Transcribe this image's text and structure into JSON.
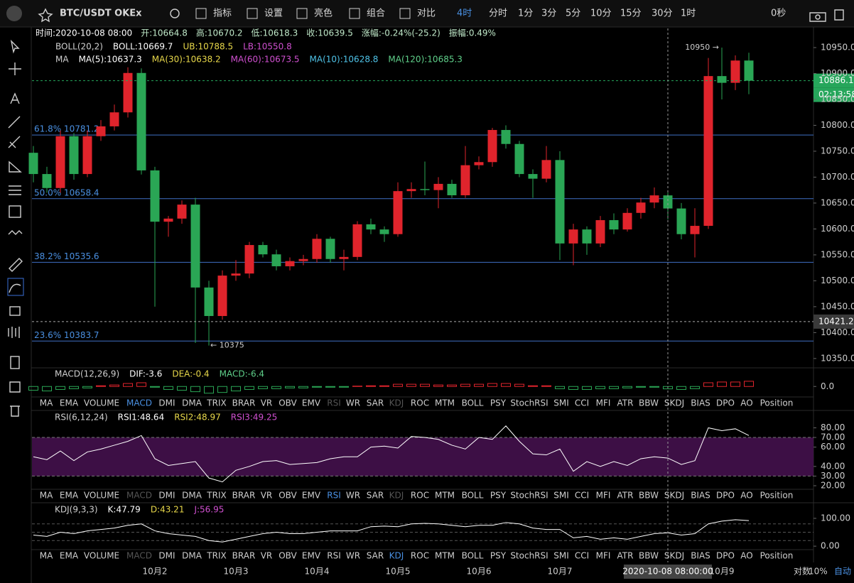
{
  "toolbar": {
    "symbol": "BTC/USDT OKEx",
    "buttons": [
      "指标",
      "设置",
      "亮色",
      "组合",
      "对比"
    ],
    "intervals": [
      "4时",
      "分时",
      "1分",
      "3分",
      "5分",
      "10分",
      "15分",
      "30分",
      "1时"
    ],
    "countdown": "0秒"
  },
  "info": [
    "时间:2020-10-08 08:00",
    "开:10664.8",
    "高:10670.2",
    "低:10618.3",
    "收:10639.5",
    "涨幅:-0.24%(-25.2)",
    "振幅:0.49%"
  ],
  "legends": {
    "boll": [
      {
        "text": "BOLL(20,2)",
        "color": "#cfcfcf"
      },
      {
        "text": "BOLL:10669.7",
        "color": "#ffffff"
      },
      {
        "text": "UB:10788.5",
        "color": "#e8d84a"
      },
      {
        "text": "LB:10550.8",
        "color": "#d050d0"
      }
    ],
    "ma": [
      {
        "text": "MA",
        "color": "#cfcfcf"
      },
      {
        "text": "MA(5):10637.3",
        "color": "#ffffff"
      },
      {
        "text": "MA(30):10638.2",
        "color": "#e8d84a"
      },
      {
        "text": "MA(60):10673.5",
        "color": "#d050d0"
      },
      {
        "text": "MA(10):10628.8",
        "color": "#4fc3e8"
      },
      {
        "text": "MA(120):10685.3",
        "color": "#5fd08a"
      }
    ]
  },
  "chart_data": [
    {
      "type": "candlestick",
      "categories": [
        null,
        null,
        null,
        null,
        null,
        null,
        null,
        null,
        null,
        "10月2",
        null,
        null,
        null,
        null,
        null,
        "10月3",
        null,
        null,
        null,
        null,
        null,
        "10月4",
        null,
        null,
        null,
        null,
        null,
        "10月5",
        null,
        null,
        null,
        null,
        null,
        "10月6",
        null,
        null,
        null,
        null,
        null,
        "10月7",
        null,
        null,
        null,
        null,
        null,
        null,
        null,
        null,
        null,
        null,
        null,
        "10月9",
        null,
        null
      ],
      "open": [
        10747,
        10706,
        10679,
        10779,
        10706,
        10779,
        10798,
        10825,
        10901,
        10713,
        10614,
        10620,
        10647,
        10487,
        10432,
        10510,
        10514,
        10569,
        10551,
        10528,
        10538,
        10542,
        10581,
        10542,
        10546,
        10609,
        10599,
        10590,
        10673,
        10677,
        10675,
        10687,
        10665,
        10723,
        10729,
        10791,
        10764,
        10706,
        10697,
        10733,
        10572,
        10599,
        10572,
        10617,
        10599,
        10631,
        10651,
        10664.8,
        10639.5,
        10590,
        10606,
        10895,
        10882,
        10925
      ],
      "high": [
        10760,
        10720,
        10790,
        10785,
        10790,
        10810,
        10840,
        10912,
        10910,
        10720,
        10625,
        10655,
        10660,
        10500,
        10520,
        10540,
        10575,
        10575,
        10560,
        10545,
        10550,
        10590,
        10585,
        10560,
        10615,
        10620,
        10605,
        10690,
        10690,
        10730,
        10700,
        10695,
        10760,
        10740,
        10795,
        10800,
        10770,
        10715,
        10760,
        10750,
        10610,
        10605,
        10625,
        10630,
        10640,
        10660,
        10680,
        10670.2,
        10650,
        10640,
        10930,
        10950,
        10935,
        10940
      ],
      "low": [
        10690,
        10670,
        10670,
        10695,
        10700,
        10770,
        10790,
        10815,
        10705,
        10450,
        10585,
        10610,
        10380,
        10375,
        10425,
        10500,
        10505,
        10545,
        10520,
        10520,
        10530,
        10535,
        10535,
        10520,
        10540,
        10590,
        10575,
        10585,
        10660,
        10665,
        10640,
        10660,
        10660,
        10715,
        10720,
        10755,
        10700,
        10660,
        10690,
        10540,
        10530,
        10550,
        10565,
        10590,
        10595,
        10620,
        10640,
        10618.3,
        10580,
        10545,
        10600,
        10850,
        10868,
        10860
      ],
      "close": [
        10706,
        10679,
        10779,
        10706,
        10779,
        10798,
        10825,
        10901,
        10713,
        10614,
        10620,
        10647,
        10487,
        10432,
        10510,
        10514,
        10569,
        10551,
        10528,
        10538,
        10542,
        10581,
        10542,
        10546,
        10609,
        10599,
        10590,
        10673,
        10677,
        10675,
        10687,
        10665,
        10723,
        10729,
        10791,
        10764,
        10706,
        10697,
        10733,
        10572,
        10599,
        10572,
        10617,
        10599,
        10631,
        10651,
        10664.8,
        10639.5,
        10590,
        10606,
        10895,
        10882,
        10925,
        10886.1
      ],
      "up_color": "#e0242c",
      "down_color": "#2aa655",
      "ylim": [
        10332,
        10987
      ],
      "yticks": [
        {
          "value": 10350,
          "label": "10350.0"
        },
        {
          "value": 10400,
          "label": "10400.0"
        },
        {
          "value": 10450,
          "label": "10450.0"
        },
        {
          "value": 10500,
          "label": "10500.0"
        },
        {
          "value": 10550,
          "label": "10550.0"
        },
        {
          "value": 10600,
          "label": "10600.0"
        },
        {
          "value": 10650,
          "label": "10650.0"
        },
        {
          "value": 10700,
          "label": "10700.0"
        },
        {
          "value": 10750,
          "label": "10750.0"
        },
        {
          "value": 10800,
          "label": "10800.0"
        },
        {
          "value": 10850,
          "label": "10850.0"
        },
        {
          "value": 10900,
          "label": "10900.0"
        },
        {
          "value": 10950,
          "label": "10950.0"
        }
      ],
      "fib_levels": [
        {
          "value": 10781.2,
          "label": "61.8% 10781.2"
        },
        {
          "value": 10658.4,
          "label": "50.0% 10658.4"
        },
        {
          "value": 10535.6,
          "label": "38.2% 10535.6"
        },
        {
          "value": 10383.7,
          "label": "23.6% 10383.7"
        }
      ],
      "price_tags": [
        {
          "value": 10886.1,
          "label": "10886.1",
          "color": "#26a65b"
        },
        {
          "value": 10421.2,
          "label": "10421.2",
          "color": "#3a3a3a"
        }
      ],
      "bar_countdown": "02:13:58",
      "annotations": [
        "10950 →",
        "← 10375"
      ]
    },
    {
      "type": "bar",
      "legend": [
        {
          "text": "MACD(12,26,9)",
          "color": "#cfcfcf"
        },
        {
          "text": "DIF:-3.6",
          "color": "#ffffff"
        },
        {
          "text": "DEA:-0.4",
          "color": "#e8d84a"
        },
        {
          "text": "MACD:-6.4",
          "color": "#5fd08a"
        }
      ],
      "values": [
        -10,
        -12,
        -8,
        -6,
        -4,
        2,
        4,
        8,
        10,
        -2,
        -8,
        -10,
        -14,
        -18,
        -16,
        -12,
        -8,
        -6,
        -6,
        -4,
        -4,
        -2,
        -2,
        -2,
        1,
        2,
        2,
        6,
        6,
        6,
        4,
        4,
        6,
        6,
        8,
        8,
        6,
        2,
        2,
        -6,
        -8,
        -8,
        -6,
        -6,
        -4,
        -2,
        -2,
        -6.4,
        -8,
        -6,
        10,
        12,
        12,
        14
      ],
      "up_color": "#e0242c",
      "down_color": "#2aa655",
      "ylim": [
        -30,
        50
      ],
      "yticks": [
        {
          "value": 0,
          "label": "0.0"
        }
      ]
    },
    {
      "type": "line",
      "legend": [
        {
          "text": "RSI(6,12,24)",
          "color": "#cfcfcf"
        },
        {
          "text": "RSI1:48.64",
          "color": "#ffffff"
        },
        {
          "text": "RSI2:48.97",
          "color": "#e8d84a"
        },
        {
          "text": "RSI3:49.25",
          "color": "#d050d0"
        }
      ],
      "series": [
        {
          "color": "#ffffff",
          "values": [
            50,
            47,
            56,
            46,
            55,
            58,
            62,
            66,
            72,
            48,
            41,
            43,
            45,
            28,
            24,
            36,
            40,
            45,
            46,
            42,
            43,
            44,
            48,
            50,
            50,
            60,
            61,
            59,
            71,
            70,
            68,
            62,
            58,
            70,
            68,
            82,
            66,
            53,
            52,
            58,
            35,
            45,
            40,
            45,
            41,
            48,
            50,
            48.64,
            42,
            46,
            80,
            77,
            79,
            72
          ]
        }
      ],
      "zone": [
        30,
        70
      ],
      "zone_color": "#3d0f45",
      "ylim": [
        15.6,
        98
      ],
      "yticks": [
        {
          "value": 20,
          "label": "20.00"
        },
        {
          "value": 30,
          "label": "30.00"
        },
        {
          "value": 40,
          "label": "40.00"
        },
        {
          "value": 60,
          "label": "60.00"
        },
        {
          "value": 70,
          "label": "70.00"
        },
        {
          "value": 80,
          "label": "80.00"
        }
      ]
    },
    {
      "type": "line",
      "legend": [
        {
          "text": "KDJ(9,3,3)",
          "color": "#cfcfcf"
        },
        {
          "text": "K:47.79",
          "color": "#ffffff"
        },
        {
          "text": "D:43.21",
          "color": "#e8d84a"
        },
        {
          "text": "J:56.95",
          "color": "#d050d0"
        }
      ],
      "series": [
        {
          "color": "#ffffff",
          "values": [
            40,
            35,
            50,
            45,
            55,
            60,
            65,
            75,
            80,
            55,
            45,
            40,
            35,
            20,
            15,
            25,
            35,
            45,
            50,
            45,
            45,
            50,
            55,
            55,
            55,
            70,
            72,
            70,
            80,
            82,
            80,
            75,
            70,
            75,
            75,
            85,
            80,
            65,
            60,
            60,
            30,
            35,
            25,
            30,
            25,
            35,
            45,
            47.79,
            40,
            45,
            80,
            90,
            95,
            92
          ]
        }
      ],
      "guides": [
        20,
        50,
        80
      ],
      "ylim": [
        -15,
        156
      ],
      "yticks": [
        {
          "value": 0,
          "label": "0.00"
        },
        {
          "value": 100,
          "label": "100.00"
        }
      ]
    }
  ],
  "indicator_tabs": [
    "MA",
    "EMA",
    "VOLUME",
    "MACD",
    "DMI",
    "DMA",
    "TRIX",
    "BRAR",
    "VR",
    "OBV",
    "EMV",
    "RSI",
    "WR",
    "SAR",
    "KDJ",
    "ROC",
    "MTM",
    "BOLL",
    "PSY",
    "StochRSI",
    "SMI",
    "CCI",
    "MFI",
    "ATR",
    "BBW",
    "SKDJ",
    "BIAS",
    "DPO",
    "AO",
    "Position"
  ],
  "footer": {
    "crosshair_time": "2020-10-08 08:00:00",
    "log": "对数",
    "percent": "10%",
    "auto": "自动"
  }
}
